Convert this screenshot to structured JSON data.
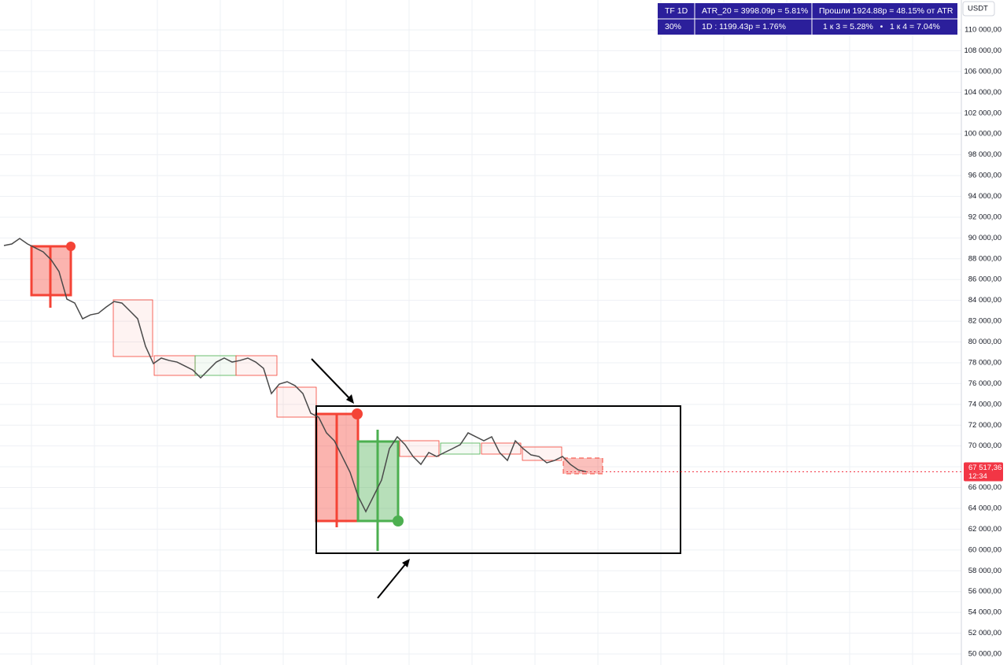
{
  "chart_data": {
    "type": "line",
    "currency": "USDT",
    "info_table": {
      "rows": [
        [
          "TF 1D",
          "ATR_20 = 3998.09р = 5.81%",
          "Прошли 1924.88р = 48.15% от ATR"
        ],
        [
          "30%",
          "1D : 1199.43р = 1.76%",
          "1 к 3 = 5.28%   •   1 к 4 = 7.04%"
        ]
      ]
    },
    "last_price": {
      "value": 67517.36,
      "label": "67 517,36"
    },
    "countdown": "12:34",
    "color": "#4a4a4a",
    "values": [
      89270,
      89420,
      89950,
      89420,
      89040,
      88660,
      87900,
      86770,
      84120,
      83740,
      82230,
      82610,
      82760,
      83360,
      83890,
      83740,
      82990,
      82230,
      79580,
      77920,
      78450,
      78220,
      78070,
      77690,
      77310,
      76550,
      77310,
      78070,
      78450,
      78070,
      78220,
      78450,
      78070,
      77460,
      75040,
      75950,
      76180,
      75800,
      75040,
      73150,
      72770,
      71260,
      70500,
      68990,
      67470,
      65200,
      63690,
      65200,
      66720,
      69740,
      70880,
      70120,
      68990,
      68230,
      69370,
      68990,
      69370,
      69740,
      70120,
      71260,
      70880,
      70500,
      70880,
      69370,
      68610,
      70500,
      69740,
      69140,
      68990,
      68380,
      68610,
      68990,
      68230,
      67700,
      67520
    ],
    "ylim": [
      48940,
      112880
    ],
    "yticks": [
      {
        "value": 50000,
        "label": "50 000,00"
      },
      {
        "value": 52000,
        "label": "52 000,00"
      },
      {
        "value": 54000,
        "label": "54 000,00"
      },
      {
        "value": 56000,
        "label": "56 000,00"
      },
      {
        "value": 58000,
        "label": "58 000,00"
      },
      {
        "value": 60000,
        "label": "60 000,00"
      },
      {
        "value": 62000,
        "label": "62 000,00"
      },
      {
        "value": 64000,
        "label": "64 000,00"
      },
      {
        "value": 66000,
        "label": "66 000,00"
      },
      {
        "value": 68000,
        "label": "68 000,00"
      },
      {
        "value": 70000,
        "label": "70 000,00"
      },
      {
        "value": 72000,
        "label": "72 000,00"
      },
      {
        "value": 74000,
        "label": "74 000,00"
      },
      {
        "value": 76000,
        "label": "76 000,00"
      },
      {
        "value": 78000,
        "label": "78 000,00"
      },
      {
        "value": 80000,
        "label": "80 000,00"
      },
      {
        "value": 82000,
        "label": "82 000,00"
      },
      {
        "value": 84000,
        "label": "84 000,00"
      },
      {
        "value": 86000,
        "label": "86 000,00"
      },
      {
        "value": 88000,
        "label": "88 000,00"
      },
      {
        "value": 90000,
        "label": "90 000,00"
      },
      {
        "value": 92000,
        "label": "92 000,00"
      },
      {
        "value": 94000,
        "label": "94 000,00"
      },
      {
        "value": 96000,
        "label": "96 000,00"
      },
      {
        "value": 98000,
        "label": "98 000,00"
      },
      {
        "value": 100000,
        "label": "100 000,00"
      },
      {
        "value": 102000,
        "label": "102 000,00"
      },
      {
        "value": 104000,
        "label": "104 000,00"
      },
      {
        "value": 106000,
        "label": "106 000,00"
      },
      {
        "value": 108000,
        "label": "108 000,00"
      },
      {
        "value": 110000,
        "label": "110 000,00"
      }
    ],
    "grid": true
  }
}
